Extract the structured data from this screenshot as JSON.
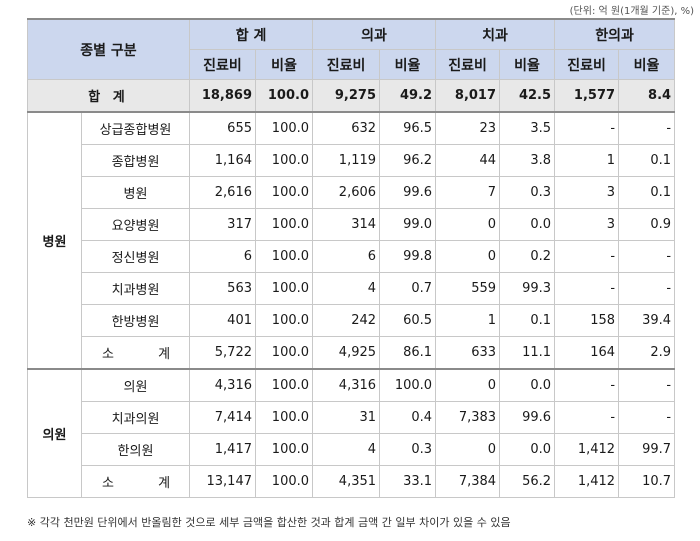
{
  "unit_note": "(단위: 억 원(1개월 기준), %)",
  "header": {
    "corner": "종별 구분",
    "groups": [
      "합 계",
      "의과",
      "치과",
      "한의과"
    ],
    "sub_cost": "진료비",
    "sub_ratio": "비율"
  },
  "total": {
    "label": "합 계",
    "values": [
      "18,869",
      "100.0",
      "9,275",
      "49.2",
      "8,017",
      "42.5",
      "1,577",
      "8.4"
    ]
  },
  "sections": [
    {
      "name": "병원",
      "rows": [
        {
          "label": "상급종합병원",
          "values": [
            "655",
            "100.0",
            "632",
            "96.5",
            "23",
            "3.5",
            "-",
            "-"
          ]
        },
        {
          "label": "종합병원",
          "values": [
            "1,164",
            "100.0",
            "1,119",
            "96.2",
            "44",
            "3.8",
            "1",
            "0.1"
          ]
        },
        {
          "label": "병원",
          "values": [
            "2,616",
            "100.0",
            "2,606",
            "99.6",
            "7",
            "0.3",
            "3",
            "0.1"
          ]
        },
        {
          "label": "요양병원",
          "values": [
            "317",
            "100.0",
            "314",
            "99.0",
            "0",
            "0.0",
            "3",
            "0.9"
          ]
        },
        {
          "label": "정신병원",
          "values": [
            "6",
            "100.0",
            "6",
            "99.8",
            "0",
            "0.2",
            "-",
            "-"
          ]
        },
        {
          "label": "치과병원",
          "values": [
            "563",
            "100.0",
            "4",
            "0.7",
            "559",
            "99.3",
            "-",
            "-"
          ]
        },
        {
          "label": "한방병원",
          "values": [
            "401",
            "100.0",
            "242",
            "60.5",
            "1",
            "0.1",
            "158",
            "39.4"
          ]
        }
      ],
      "subtotal": {
        "label": "소 계",
        "values": [
          "5,722",
          "100.0",
          "4,925",
          "86.1",
          "633",
          "11.1",
          "164",
          "2.9"
        ]
      }
    },
    {
      "name": "의원",
      "rows": [
        {
          "label": "의원",
          "values": [
            "4,316",
            "100.0",
            "4,316",
            "100.0",
            "0",
            "0.0",
            "-",
            "-"
          ]
        },
        {
          "label": "치과의원",
          "values": [
            "7,414",
            "100.0",
            "31",
            "0.4",
            "7,383",
            "99.6",
            "-",
            "-"
          ]
        },
        {
          "label": "한의원",
          "values": [
            "1,417",
            "100.0",
            "4",
            "0.3",
            "0",
            "0.0",
            "1,412",
            "99.7"
          ]
        }
      ],
      "subtotal": {
        "label": "소 계",
        "values": [
          "13,147",
          "100.0",
          "4,351",
          "33.1",
          "7,384",
          "56.2",
          "1,412",
          "10.7"
        ]
      }
    }
  ],
  "footnote": "※ 각각 천만원 단위에서 반올림한 것으로 세부 금액을 합산한 것과 합계 금액 간 일부 차이가 있을 수 있음"
}
